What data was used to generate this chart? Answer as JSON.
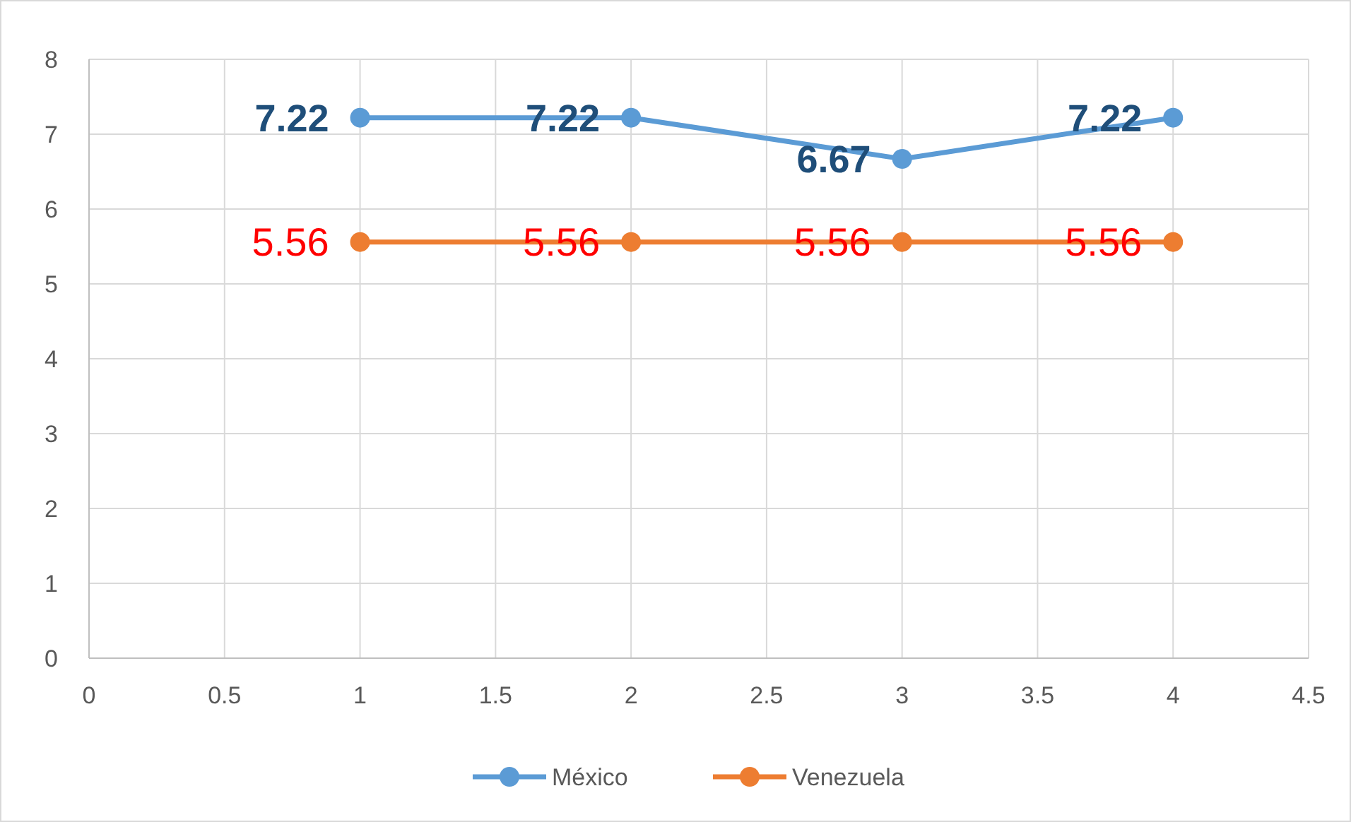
{
  "chart_data": {
    "type": "line",
    "x": [
      1,
      2,
      3,
      4
    ],
    "series": [
      {
        "name": "México",
        "color": "#5b9bd5",
        "values": [
          7.22,
          7.22,
          6.67,
          7.22
        ]
      },
      {
        "name": "Venezuela",
        "color": "#ed7d31",
        "values": [
          5.56,
          5.56,
          5.56,
          5.56
        ]
      }
    ],
    "xlim": [
      0,
      4.5
    ],
    "xticks": [
      0,
      0.5,
      1,
      1.5,
      2,
      2.5,
      3,
      3.5,
      4,
      4.5
    ],
    "ylim": [
      0,
      8
    ],
    "yticks": [
      0,
      1,
      2,
      3,
      4,
      5,
      6,
      7,
      8
    ],
    "grid": true,
    "legend": "bottom",
    "marker": "circle",
    "line_style": "solid",
    "data_labels": true
  }
}
